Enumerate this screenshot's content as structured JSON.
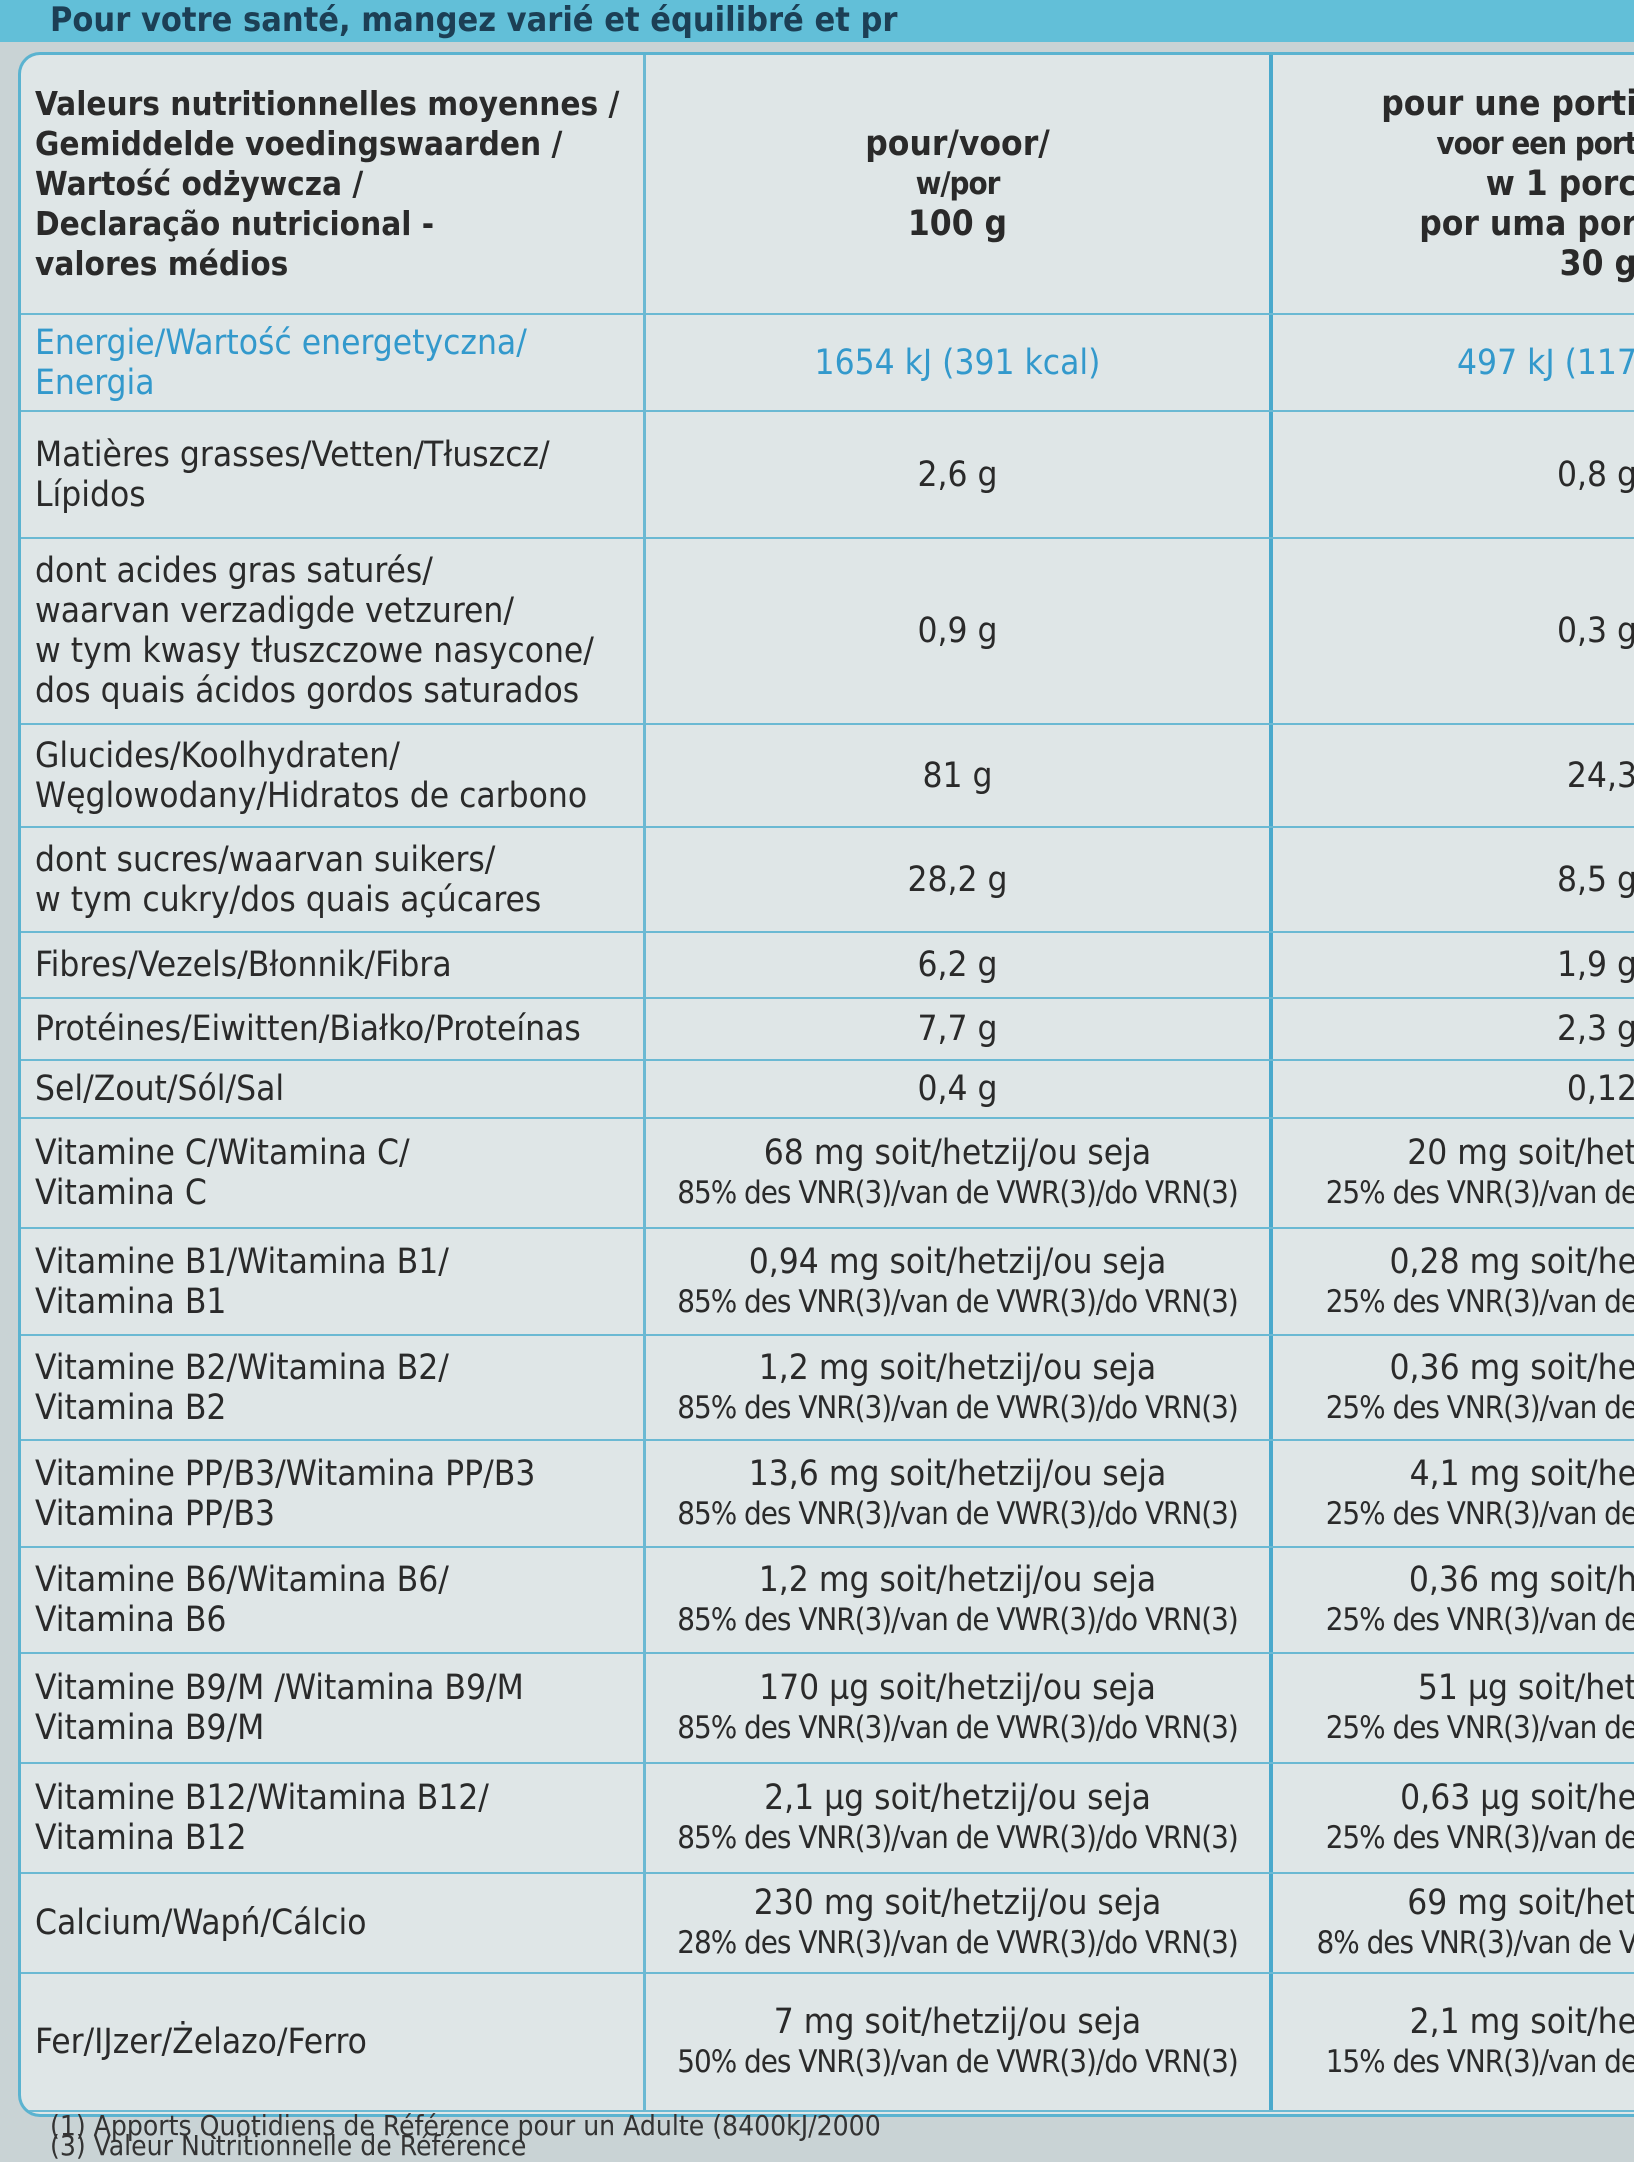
{
  "banner": "Pour votre santé, mangez varié et équilibré et pr",
  "table": {
    "header": {
      "label": [
        "Valeurs nutritionnelles moyennes /",
        "Gemiddelde voedingswaarden /",
        "Wartość odżywcza /",
        "Declaração nutricional -",
        "valores médios"
      ],
      "per_100g": [
        "pour/voor/",
        "w/por",
        "100 g"
      ],
      "per_portion": [
        "pour une porti",
        "voor een port",
        "w 1 porc",
        "por uma por",
        "30 g"
      ]
    },
    "rows": [
      {
        "label": [
          "Energie/Wartość energetyczna/",
          "Energia"
        ],
        "per_100g": [
          "1654 kJ (391 kcal)"
        ],
        "per_portion": [
          "497 kJ (117"
        ]
      },
      {
        "label": [
          "Matières grasses/Vetten/Tłuszcz/",
          "Lípidos"
        ],
        "per_100g": [
          "2,6 g"
        ],
        "per_portion": [
          "0,8 g"
        ]
      },
      {
        "label": [
          "dont acides gras saturés/",
          "waarvan verzadigde vetzuren/",
          "w tym kwasy tłuszczowe nasycone/",
          "dos quais ácidos gordos saturados"
        ],
        "per_100g": [
          "0,9 g"
        ],
        "per_portion": [
          "0,3 g"
        ]
      },
      {
        "label": [
          "Glucides/Koolhydraten/",
          "Węglowodany/Hidratos de carbono"
        ],
        "per_100g": [
          "81 g"
        ],
        "per_portion": [
          "24,3"
        ]
      },
      {
        "label": [
          "dont sucres/waarvan suikers/",
          "w tym cukry/dos quais açúcares"
        ],
        "per_100g": [
          "28,2 g"
        ],
        "per_portion": [
          "8,5 g"
        ]
      },
      {
        "label": [
          "Fibres/Vezels/Błonnik/Fibra"
        ],
        "per_100g": [
          "6,2 g"
        ],
        "per_portion": [
          "1,9 g"
        ]
      },
      {
        "label": [
          "Protéines/Eiwitten/Białko/Proteínas"
        ],
        "per_100g": [
          "7,7 g"
        ],
        "per_portion": [
          "2,3 g"
        ]
      },
      {
        "label": [
          "Sel/Zout/Sól/Sal"
        ],
        "per_100g": [
          "0,4 g"
        ],
        "per_portion": [
          "0,12"
        ]
      },
      {
        "label": [
          "Vitamine C/Witamina C/",
          "Vitamina C"
        ],
        "per_100g": [
          "68 mg soit/hetzij/ou seja",
          "85% des VNR(3)/van de VWR(3)/do VRN(3)"
        ],
        "per_portion": [
          "20 mg soit/het",
          "25% des VNR(3)/van de"
        ]
      },
      {
        "label": [
          "Vitamine B1/Witamina B1/",
          "Vitamina B1"
        ],
        "per_100g": [
          "0,94 mg soit/hetzij/ou seja",
          "85% des VNR(3)/van de VWR(3)/do VRN(3)"
        ],
        "per_portion": [
          "0,28 mg soit/he",
          "25% des VNR(3)/van de"
        ]
      },
      {
        "label": [
          "Vitamine B2/Witamina B2/",
          "Vitamina B2"
        ],
        "per_100g": [
          "1,2 mg soit/hetzij/ou seja",
          "85% des VNR(3)/van de VWR(3)/do VRN(3)"
        ],
        "per_portion": [
          "0,36 mg soit/he",
          "25% des VNR(3)/van de"
        ]
      },
      {
        "label": [
          "Vitamine PP/B3/Witamina PP/B3",
          "Vitamina PP/B3"
        ],
        "per_100g": [
          "13,6 mg soit/hetzij/ou seja",
          "85% des VNR(3)/van de VWR(3)/do VRN(3)"
        ],
        "per_portion": [
          "4,1 mg soit/he",
          "25% des VNR(3)/van de"
        ]
      },
      {
        "label": [
          "Vitamine B6/Witamina B6/",
          "Vitamina B6"
        ],
        "per_100g": [
          "1,2 mg soit/hetzij/ou seja",
          "85% des VNR(3)/van de VWR(3)/do VRN(3)"
        ],
        "per_portion": [
          "0,36 mg soit/h",
          "25% des VNR(3)/van de"
        ]
      },
      {
        "label": [
          "Vitamine B9/M /Witamina B9/M",
          "Vitamina B9/M"
        ],
        "per_100g": [
          "170 µg soit/hetzij/ou seja",
          "85% des VNR(3)/van de VWR(3)/do VRN(3)"
        ],
        "per_portion": [
          "51 µg soit/het",
          "25% des VNR(3)/van de"
        ]
      },
      {
        "label": [
          "Vitamine B12/Witamina B12/",
          "Vitamina B12"
        ],
        "per_100g": [
          "2,1 µg soit/hetzij/ou seja",
          "85% des VNR(3)/van de VWR(3)/do VRN(3)"
        ],
        "per_portion": [
          "0,63 µg soit/he",
          "25% des VNR(3)/van de"
        ]
      },
      {
        "label": [
          "Calcium/Wapń/Cálcio"
        ],
        "per_100g": [
          "230 mg soit/hetzij/ou seja",
          "28% des VNR(3)/van de VWR(3)/do VRN(3)"
        ],
        "per_portion": [
          "69 mg soit/het",
          "8% des VNR(3)/van de V"
        ]
      },
      {
        "label": [
          "Fer/IJzer/Żelazo/Ferro"
        ],
        "per_100g": [
          "7 mg soit/hetzij/ou seja",
          "50% des VNR(3)/van de VWR(3)/do VRN(3)"
        ],
        "per_portion": [
          "2,1 mg soit/he",
          "15% des VNR(3)/van de"
        ]
      }
    ]
  },
  "footnotes": [
    "(1) Apports Quotidiens de Référence pour un Adulte (8400kJ/2000",
    "(3) Valeur Nutritionnelle de Référence"
  ]
}
